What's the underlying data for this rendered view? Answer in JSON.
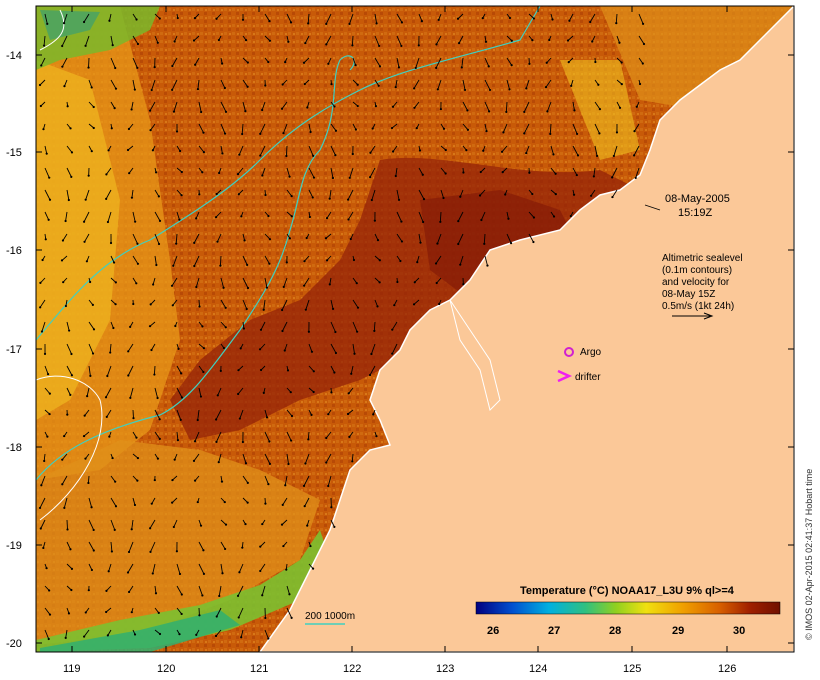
{
  "map": {
    "lat_ticks": [
      "-14",
      "-15",
      "-16",
      "-17",
      "-18",
      "-19",
      "-20"
    ],
    "lon_ticks": [
      "119",
      "120",
      "121",
      "122",
      "123",
      "124",
      "125",
      "126"
    ]
  },
  "annotations": {
    "date": "08-May-2005",
    "time": "15:19Z",
    "altimetry_lines": [
      "Altimetric sealevel",
      "(0.1m contours)",
      "and velocity for",
      "08-May 15Z",
      "0.5m/s (1kt 24h)"
    ],
    "argo_label": "Argo",
    "drifter_label": "drifter",
    "depth_legend": "200  1000m"
  },
  "colorbar": {
    "title": "Temperature (°C) NOAA17_L3U 9% ql>=4",
    "ticks": [
      "26",
      "27",
      "28",
      "29",
      "30"
    ],
    "colors": [
      "#000080",
      "#0050d0",
      "#00b0e0",
      "#30c080",
      "#90d020",
      "#f0e010",
      "#f0a000",
      "#d86000",
      "#a02000",
      "#701000"
    ]
  },
  "credit": "© IMOS 02-Apr-2015 02:41:37 Hobart time",
  "colors": {
    "land": "#fbc898",
    "sea_warm": "#c8600a",
    "sea_hot": "#902008",
    "sea_cool": "#f0b020",
    "contour": "#40d0c0",
    "argo": "#d020d0",
    "drifter": "#f020f0"
  }
}
